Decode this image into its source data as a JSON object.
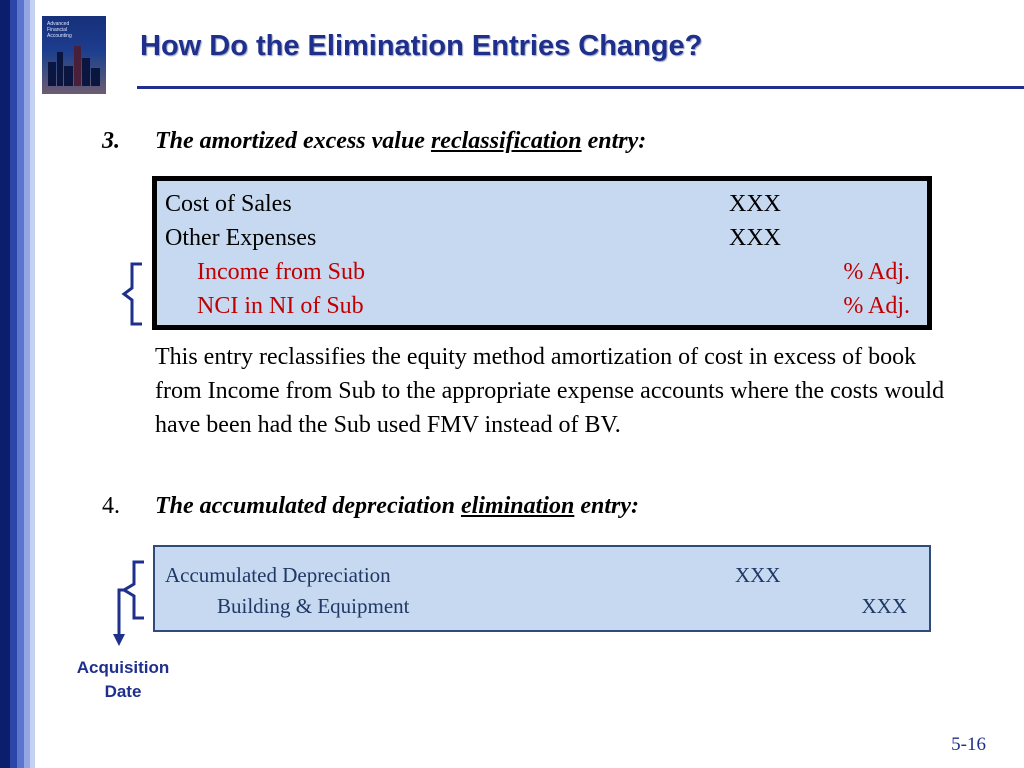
{
  "header": {
    "title": "How Do the Elimination Entries Change?",
    "book_title_lines": [
      "Advanced",
      "Financial",
      "Accounting"
    ]
  },
  "section3": {
    "number": "3.",
    "heading_pre": "The amortized excess value ",
    "heading_em": "reclassification",
    "heading_post": " entry:",
    "rows": [
      {
        "account": "Cost of Sales",
        "debit": "XXX",
        "credit": ""
      },
      {
        "account": "Other Expenses",
        "debit": "XXX",
        "credit": ""
      },
      {
        "account": "Income from Sub",
        "debit": "",
        "credit": "% Adj."
      },
      {
        "account": "NCI in NI of Sub",
        "debit": "",
        "credit": "% Adj."
      }
    ],
    "paragraph": "This entry reclassifies the equity method amortization of cost in excess of book from Income from Sub to the appropriate expense accounts where the costs would have been had the Sub used FMV instead of BV."
  },
  "section4": {
    "number": "4.",
    "heading_pre": "The accumulated depreciation ",
    "heading_em": "elimination",
    "heading_post": " entry:",
    "rows": [
      {
        "account": "Accumulated Depreciation",
        "debit": "XXX",
        "credit": ""
      },
      {
        "account": "Building & Equipment",
        "debit": "",
        "credit": "XXX"
      }
    ],
    "annotation": "Acquisition Date"
  },
  "footer": {
    "page_number": "5-16"
  },
  "colors": {
    "title": "#1f2f8c",
    "box_fill": "#c6d9f1",
    "credit_red": "#c00000",
    "stripe_dark": "#0b1e6e"
  }
}
